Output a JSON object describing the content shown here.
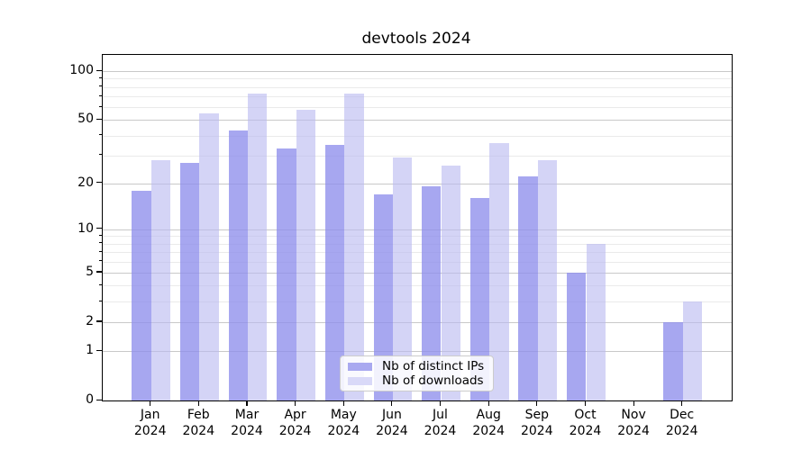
{
  "title": "devtools 2024",
  "chart_data": {
    "type": "bar",
    "title": "devtools 2024",
    "x_categories": [
      {
        "month": "Jan",
        "year": "2024"
      },
      {
        "month": "Feb",
        "year": "2024"
      },
      {
        "month": "Mar",
        "year": "2024"
      },
      {
        "month": "Apr",
        "year": "2024"
      },
      {
        "month": "May",
        "year": "2024"
      },
      {
        "month": "Jun",
        "year": "2024"
      },
      {
        "month": "Jul",
        "year": "2024"
      },
      {
        "month": "Aug",
        "year": "2024"
      },
      {
        "month": "Sep",
        "year": "2024"
      },
      {
        "month": "Oct",
        "year": "2024"
      },
      {
        "month": "Nov",
        "year": "2024"
      },
      {
        "month": "Dec",
        "year": "2024"
      }
    ],
    "series": [
      {
        "name": "Nb of distinct IPs",
        "color": "#a9a9f0",
        "fill": "rgba(141,141,235,0.77)",
        "values": [
          18,
          27,
          43,
          33,
          35,
          17,
          19,
          16,
          22,
          5,
          0,
          2
        ]
      },
      {
        "name": "Nb of downloads",
        "color": "#d9d9f8",
        "fill": "rgba(186,186,241,0.62)",
        "values": [
          28,
          55,
          73,
          58,
          73,
          29,
          26,
          36,
          28,
          8,
          0,
          3
        ]
      }
    ],
    "yscale": "log1p",
    "ylim": [
      0,
      126
    ],
    "y_major_ticks": [
      100,
      50,
      20,
      10,
      5,
      2,
      1,
      0
    ],
    "y_minor_ticks": [
      90,
      80,
      70,
      60,
      40,
      30,
      9,
      8,
      7,
      6,
      4,
      3
    ],
    "grid": true,
    "legend_position": "lower center"
  },
  "legend": {
    "items": [
      "Nb of distinct IPs",
      "Nb of downloads"
    ]
  },
  "colors": {
    "background": "#ffffff",
    "axis": "#000000",
    "grid_major": "#c9c9c9",
    "grid_minor": "#eaeaea",
    "text": "#000000"
  }
}
